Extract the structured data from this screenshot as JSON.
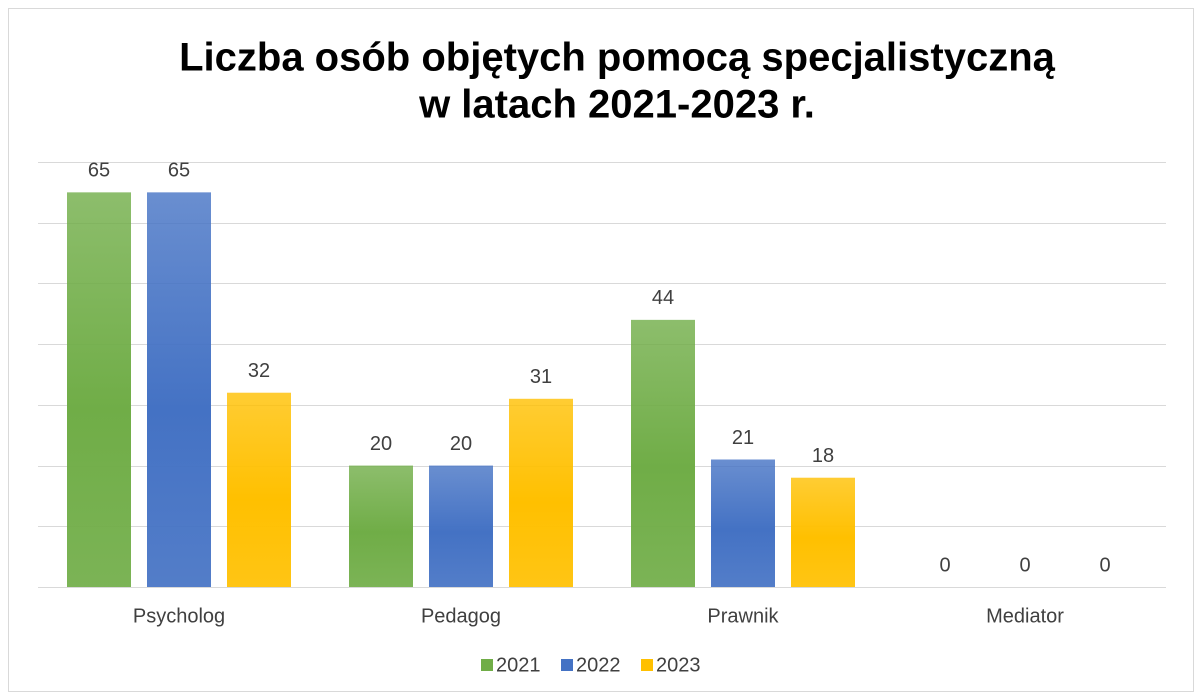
{
  "chart_data": {
    "type": "bar",
    "title": [
      "Liczba osób objętych pomocą specjalistyczną",
      "w latach 2021-2023 r."
    ],
    "categories": [
      "Psycholog",
      "Pedagog",
      "Prawnik",
      "Mediator"
    ],
    "series": [
      {
        "name": "2021",
        "color": "#70ad47",
        "values": [
          65,
          20,
          44,
          0
        ]
      },
      {
        "name": "2022",
        "color": "#4472c4",
        "values": [
          65,
          20,
          21,
          0
        ]
      },
      {
        "name": "2023",
        "color": "#ffc000",
        "values": [
          32,
          31,
          18,
          0
        ]
      }
    ],
    "ylim": [
      0,
      70
    ],
    "yticks": [
      0,
      10,
      20,
      30,
      40,
      50,
      60,
      70
    ],
    "grid": true,
    "legend": "bottom"
  }
}
